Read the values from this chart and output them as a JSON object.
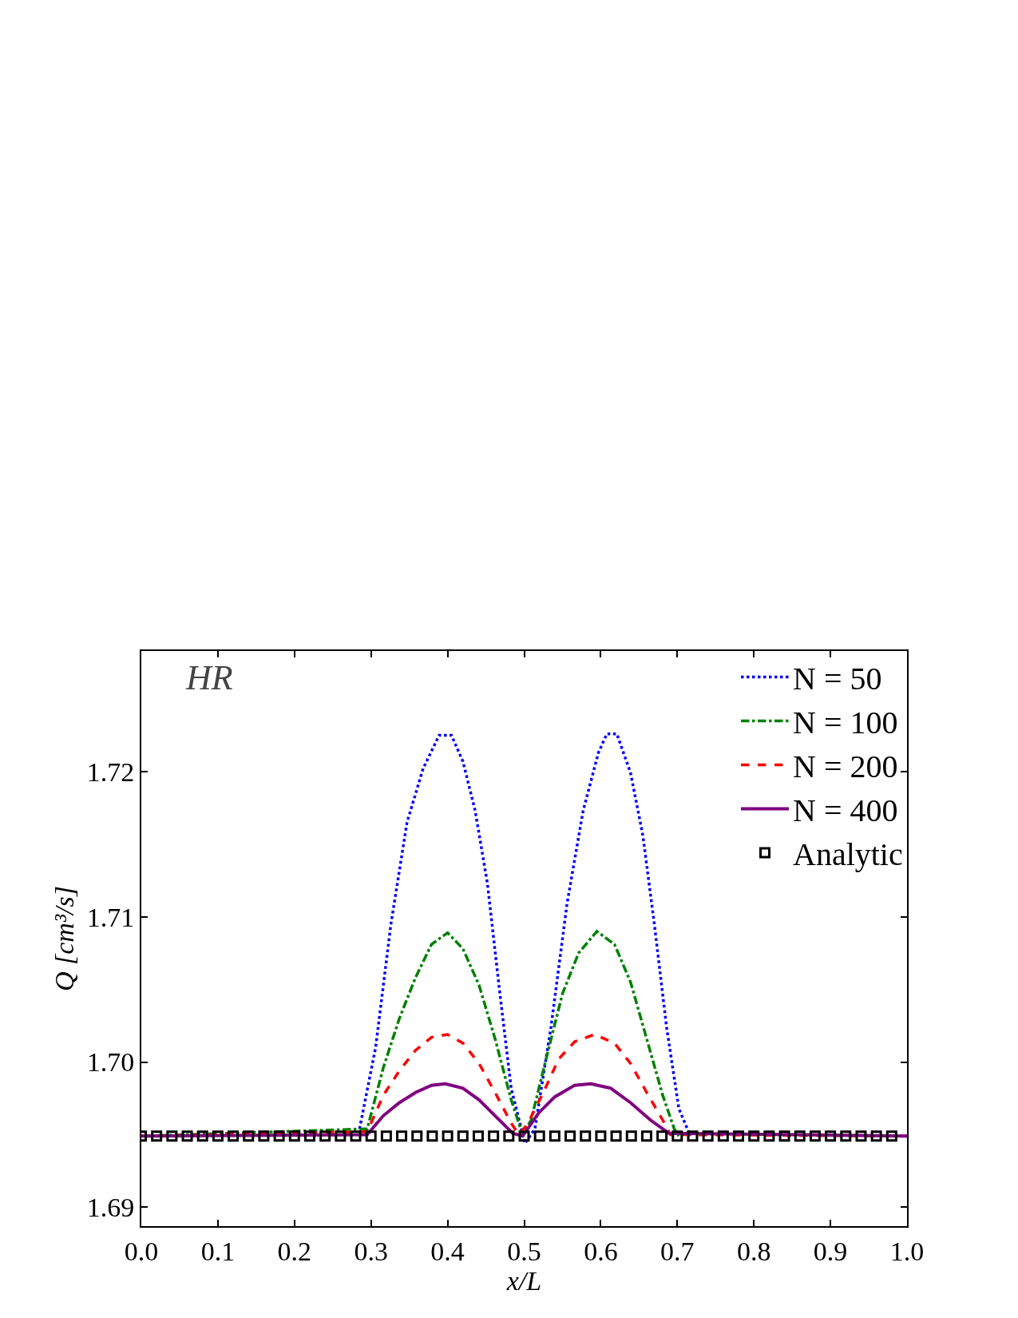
{
  "chart_data": {
    "type": "line",
    "xlabel": "x/L",
    "ylabel": "Q [cm³/s]",
    "annotations": [
      "HR"
    ],
    "xlim": [
      0,
      1
    ],
    "xticks": [
      {
        "value": 0,
        "label": "0.0"
      },
      {
        "value": 0.1,
        "label": "0.1"
      },
      {
        "value": 0.2,
        "label": "0.2"
      },
      {
        "value": 0.3,
        "label": "0.3"
      },
      {
        "value": 0.4,
        "label": "0.4"
      },
      {
        "value": 0.5,
        "label": "0.5"
      },
      {
        "value": 0.6,
        "label": "0.6"
      },
      {
        "value": 0.7,
        "label": "0.7"
      },
      {
        "value": 0.8,
        "label": "0.8"
      },
      {
        "value": 0.9,
        "label": "0.9"
      },
      {
        "value": 1,
        "label": "1.0"
      }
    ],
    "ylim": [
      1.6887,
      1.7283
    ],
    "yticks": [
      1.69,
      {
        "value": 1.7,
        "label": "1.70"
      },
      1.71,
      1.72
    ],
    "grid": false,
    "legend": "top right",
    "series": [
      {
        "name": "N = 50",
        "color": "#0000ff",
        "line_style": "dotted",
        "marker": "none",
        "x": [
          0.285,
          0.306,
          0.326,
          0.347,
          0.368,
          0.389,
          0.405,
          0.42,
          0.436,
          0.452,
          0.467,
          0.483,
          0.501,
          0.514,
          0.535,
          0.556,
          0.577,
          0.597,
          0.608,
          0.621,
          0.639,
          0.655,
          0.67,
          0.686,
          0.702,
          0.717
        ],
        "values": [
          1.6954,
          1.701,
          1.7095,
          1.7165,
          1.7202,
          1.7225,
          1.7225,
          1.7207,
          1.7173,
          1.7123,
          1.7053,
          1.6982,
          1.6944,
          1.6954,
          1.7024,
          1.7109,
          1.7173,
          1.7213,
          1.7226,
          1.7226,
          1.7199,
          1.7156,
          1.7095,
          1.7024,
          1.6968,
          1.6949
        ]
      },
      {
        "name": "N = 100",
        "color": "#008000",
        "line_style": "dashdot",
        "marker": "none",
        "x": [
          0,
          0.295,
          0.316,
          0.337,
          0.358,
          0.379,
          0.4,
          0.42,
          0.441,
          0.462,
          0.483,
          0.498,
          0.509,
          0.53,
          0.55,
          0.571,
          0.595,
          0.618,
          0.639,
          0.66,
          0.681,
          0.696,
          0.702
        ],
        "values": [
          1.6949,
          1.6954,
          1.6996,
          1.703,
          1.7058,
          1.7081,
          1.7089,
          1.7078,
          1.7053,
          1.7016,
          1.6974,
          1.695,
          1.696,
          1.7005,
          1.7047,
          1.7075,
          1.709,
          1.7081,
          1.7055,
          1.7016,
          1.6977,
          1.6954,
          1.6949
        ]
      },
      {
        "name": "N = 200",
        "color": "#ff0000",
        "line_style": "dashed",
        "marker": "none",
        "x": [
          0,
          0.295,
          0.316,
          0.337,
          0.358,
          0.379,
          0.4,
          0.42,
          0.441,
          0.462,
          0.483,
          0.493,
          0.504,
          0.525,
          0.545,
          0.566,
          0.592,
          0.618,
          0.639,
          0.66,
          0.681,
          0.691,
          1
        ],
        "values": [
          1.6949,
          1.6952,
          1.6977,
          1.6994,
          1.7008,
          1.7017,
          1.7019,
          1.7013,
          1.6999,
          1.6979,
          1.6958,
          1.695,
          1.6957,
          1.6979,
          1.7002,
          1.7014,
          1.7019,
          1.7013,
          1.6999,
          1.6979,
          1.696,
          1.695,
          1.6949
        ]
      },
      {
        "name": "N = 400",
        "color": "#800080",
        "line_style": "solid",
        "marker": "none",
        "x": [
          0,
          0.295,
          0.316,
          0.337,
          0.358,
          0.379,
          0.397,
          0.42,
          0.441,
          0.462,
          0.485,
          0.498,
          0.519,
          0.54,
          0.566,
          0.587,
          0.613,
          0.639,
          0.665,
          0.689,
          1
        ],
        "values": [
          1.6949,
          1.695,
          1.6963,
          1.6972,
          1.6979,
          1.6984,
          1.6985,
          1.6982,
          1.6974,
          1.6963,
          1.6951,
          1.6949,
          1.6965,
          1.6976,
          1.6984,
          1.6985,
          1.6982,
          1.6972,
          1.696,
          1.6951,
          1.6949
        ]
      },
      {
        "name": "Analytic",
        "type": "scatter",
        "color": "#000000",
        "marker": "square",
        "x": [
          0,
          0.02,
          0.04,
          0.06,
          0.08,
          0.1,
          0.12,
          0.14,
          0.16,
          0.18,
          0.2,
          0.22,
          0.24,
          0.26,
          0.28,
          0.3,
          0.32,
          0.34,
          0.36,
          0.38,
          0.4,
          0.42,
          0.44,
          0.46,
          0.48,
          0.5,
          0.52,
          0.54,
          0.56,
          0.58,
          0.6,
          0.62,
          0.64,
          0.66,
          0.68,
          0.7,
          0.72,
          0.74,
          0.76,
          0.78,
          0.8,
          0.82,
          0.84,
          0.86,
          0.88,
          0.9,
          0.92,
          0.94,
          0.96,
          0.98
        ],
        "values": [
          1.6949,
          1.6949,
          1.6949,
          1.6949,
          1.6949,
          1.6949,
          1.6949,
          1.6949,
          1.6949,
          1.6949,
          1.6949,
          1.6949,
          1.6949,
          1.6949,
          1.6949,
          1.6949,
          1.6949,
          1.6949,
          1.6949,
          1.6949,
          1.6949,
          1.6949,
          1.6949,
          1.6949,
          1.6949,
          1.6949,
          1.6949,
          1.6949,
          1.6949,
          1.6949,
          1.6949,
          1.6949,
          1.6949,
          1.6949,
          1.6949,
          1.6949,
          1.6949,
          1.6949,
          1.6949,
          1.6949,
          1.6949,
          1.6949,
          1.6949,
          1.6949,
          1.6949,
          1.6949,
          1.6949,
          1.6949,
          1.6949,
          1.6949
        ]
      }
    ]
  }
}
